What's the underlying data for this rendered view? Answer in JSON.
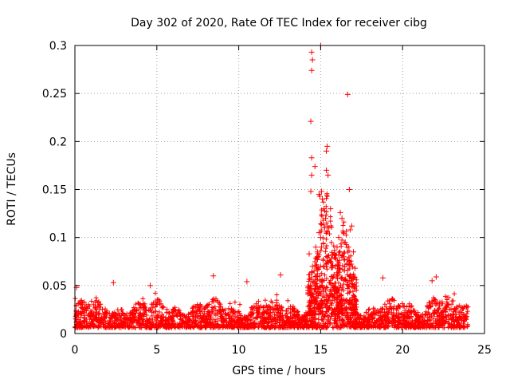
{
  "chart_data": {
    "type": "scatter",
    "title": "Day 302 of 2020, Rate Of TEC Index for receiver cibg",
    "xlabel": "GPS time / hours",
    "ylabel": "ROTI / TECUs",
    "xlim": [
      0,
      25
    ],
    "ylim": [
      0,
      0.3
    ],
    "xticks": [
      0,
      5,
      10,
      15,
      20,
      25
    ],
    "yticks": [
      0,
      0.05,
      0.1,
      0.15,
      0.2,
      0.25,
      0.3
    ],
    "xtick_labels": [
      "0",
      "5",
      "10",
      "15",
      "20",
      "25"
    ],
    "ytick_labels": [
      "0",
      "0.05",
      "0.1",
      "0.15",
      "0.2",
      "0.25",
      "0.3"
    ],
    "grid": true,
    "marker": "+",
    "series": [
      {
        "name": "ROTI",
        "color": "#ff0000",
        "points": [
          [
            14.45,
            0.293
          ],
          [
            14.5,
            0.285
          ],
          [
            14.45,
            0.274
          ],
          [
            14.4,
            0.221
          ],
          [
            16.65,
            0.249
          ],
          [
            15.0,
            0.3
          ],
          [
            15.4,
            0.195
          ],
          [
            15.35,
            0.19
          ],
          [
            14.45,
            0.183
          ],
          [
            14.65,
            0.174
          ],
          [
            14.45,
            0.165
          ],
          [
            15.35,
            0.17
          ],
          [
            15.45,
            0.165
          ],
          [
            14.9,
            0.145
          ],
          [
            14.95,
            0.143
          ],
          [
            15.05,
            0.148
          ],
          [
            16.75,
            0.15
          ],
          [
            14.4,
            0.148
          ],
          [
            15.1,
            0.14
          ],
          [
            15.2,
            0.13
          ],
          [
            15.3,
            0.12
          ],
          [
            15.6,
            0.13
          ],
          [
            16.2,
            0.126
          ],
          [
            16.3,
            0.12
          ],
          [
            15.15,
            0.118
          ],
          [
            15.25,
            0.11
          ],
          [
            16.9,
            0.112
          ],
          [
            16.8,
            0.108
          ],
          [
            14.9,
            0.105
          ],
          [
            15.0,
            0.1
          ],
          [
            15.5,
            0.11
          ],
          [
            16.1,
            0.1
          ],
          [
            16.5,
            0.095
          ],
          [
            14.3,
            0.083
          ],
          [
            14.7,
            0.09
          ],
          [
            14.8,
            0.085
          ],
          [
            15.05,
            0.09
          ],
          [
            16.0,
            0.09
          ],
          [
            16.4,
            0.08
          ],
          [
            17.0,
            0.085
          ],
          [
            14.5,
            0.07
          ],
          [
            14.6,
            0.065
          ],
          [
            15.6,
            0.075
          ],
          [
            15.9,
            0.07
          ],
          [
            16.6,
            0.072
          ],
          [
            17.1,
            0.068
          ],
          [
            8.45,
            0.06
          ],
          [
            10.5,
            0.054
          ],
          [
            12.55,
            0.061
          ],
          [
            22.05,
            0.059
          ],
          [
            2.35,
            0.053
          ],
          [
            4.6,
            0.05
          ],
          [
            0.1,
            0.048
          ],
          [
            18.8,
            0.058
          ],
          [
            21.8,
            0.055
          ]
        ]
      }
    ]
  }
}
